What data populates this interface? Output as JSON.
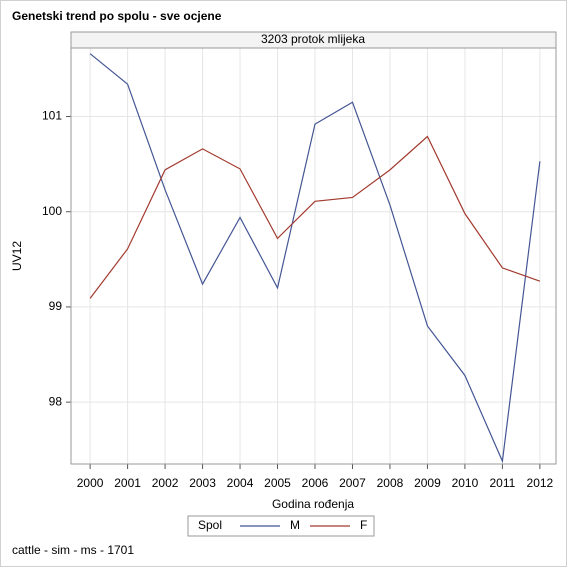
{
  "chart_data": {
    "type": "line",
    "title": "Genetski trend po spolu - sve ocjene",
    "subtitle": "3203 protok mlijeka",
    "x_label": "Godina rođenja",
    "y_label": "UV12",
    "x": [
      2000,
      2001,
      2002,
      2003,
      2004,
      2005,
      2006,
      2007,
      2008,
      2009,
      2010,
      2011,
      2012
    ],
    "series": [
      {
        "name": "M",
        "color": "#445694",
        "values": [
          101.66,
          101.34,
          100.23,
          99.24,
          99.94,
          99.2,
          100.92,
          101.15,
          100.07,
          98.8,
          98.28,
          97.38,
          100.53
        ]
      },
      {
        "name": "F",
        "color": "#a23a2e",
        "values": [
          99.09,
          99.61,
          100.44,
          100.66,
          100.45,
          99.72,
          100.11,
          100.15,
          100.44,
          100.79,
          99.98,
          99.41,
          99.27
        ]
      }
    ],
    "xlim": [
      1999.49,
      2012.43
    ],
    "xticks": [
      2000,
      2001,
      2002,
      2003,
      2004,
      2005,
      2006,
      2007,
      2008,
      2009,
      2010,
      2011,
      2012
    ],
    "ylim": [
      97.35,
      101.72
    ],
    "yticks": [
      98,
      99,
      100,
      101
    ],
    "grid": true,
    "legend_title": "Spol",
    "legend_position": "bottom",
    "footnote": "cattle - sim - ms - 1701"
  }
}
